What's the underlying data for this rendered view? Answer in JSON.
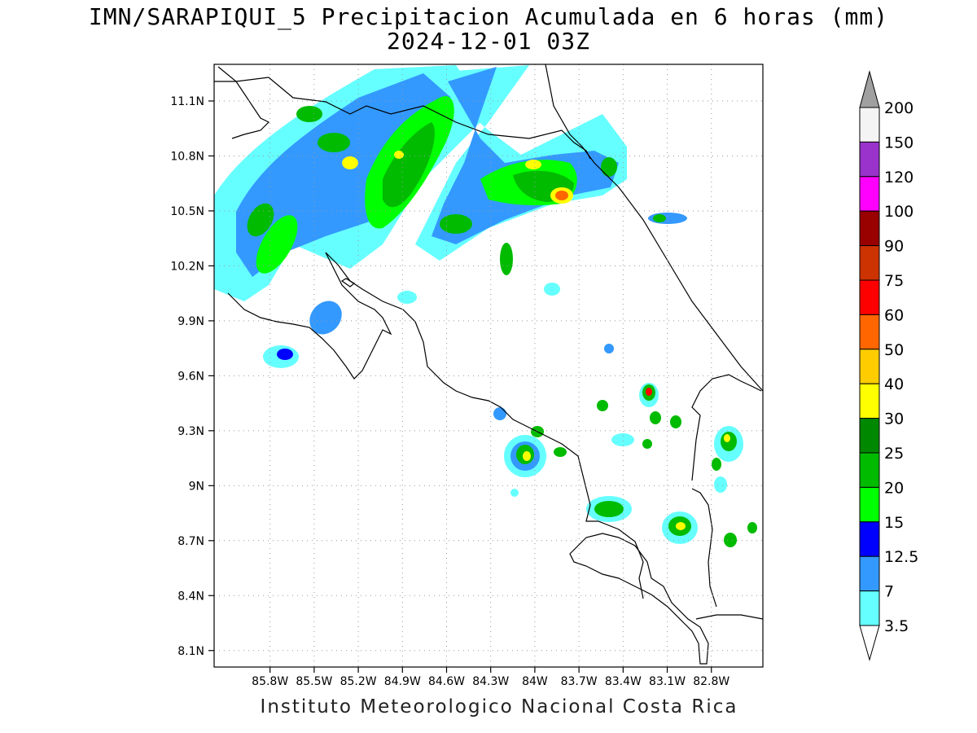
{
  "title": {
    "line1": "IMN/SARAPIQUI_5 Precipitacion Acumulada en 6 horas (mm)",
    "line2": "2024-12-01 03Z"
  },
  "credit": "Instituto Meteorologico Nacional Costa Rica",
  "map": {
    "lon_range": [
      -86.18,
      -82.45
    ],
    "lat_range": [
      8.01,
      11.3
    ],
    "lon_ticks": [
      "85.8W",
      "85.5W",
      "85.2W",
      "84.9W",
      "84.6W",
      "84.3W",
      "84W",
      "83.7W",
      "83.4W",
      "83.1W",
      "82.8W"
    ],
    "lat_ticks": [
      "11.1N",
      "10.8N",
      "10.5N",
      "10.2N",
      "9.9N",
      "9.6N",
      "9.3N",
      "9N",
      "8.7N",
      "8.4N",
      "8.1N"
    ],
    "grid": "dotted"
  },
  "legend": {
    "labels": [
      "200",
      "150",
      "120",
      "100",
      "90",
      "75",
      "60",
      "50",
      "40",
      "30",
      "25",
      "20",
      "15",
      "12.5",
      "7",
      "3.5"
    ],
    "colors": [
      "#a0a0a0",
      "#f4f4f4",
      "#9933cc",
      "#ff00ff",
      "#990000",
      "#cc3300",
      "#ff0000",
      "#ff6600",
      "#ffcc00",
      "#ffff00",
      "#008800",
      "#00bb00",
      "#00ff00",
      "#0000ff",
      "#3399ff",
      "#66ffff",
      "#ffffff"
    ]
  }
}
